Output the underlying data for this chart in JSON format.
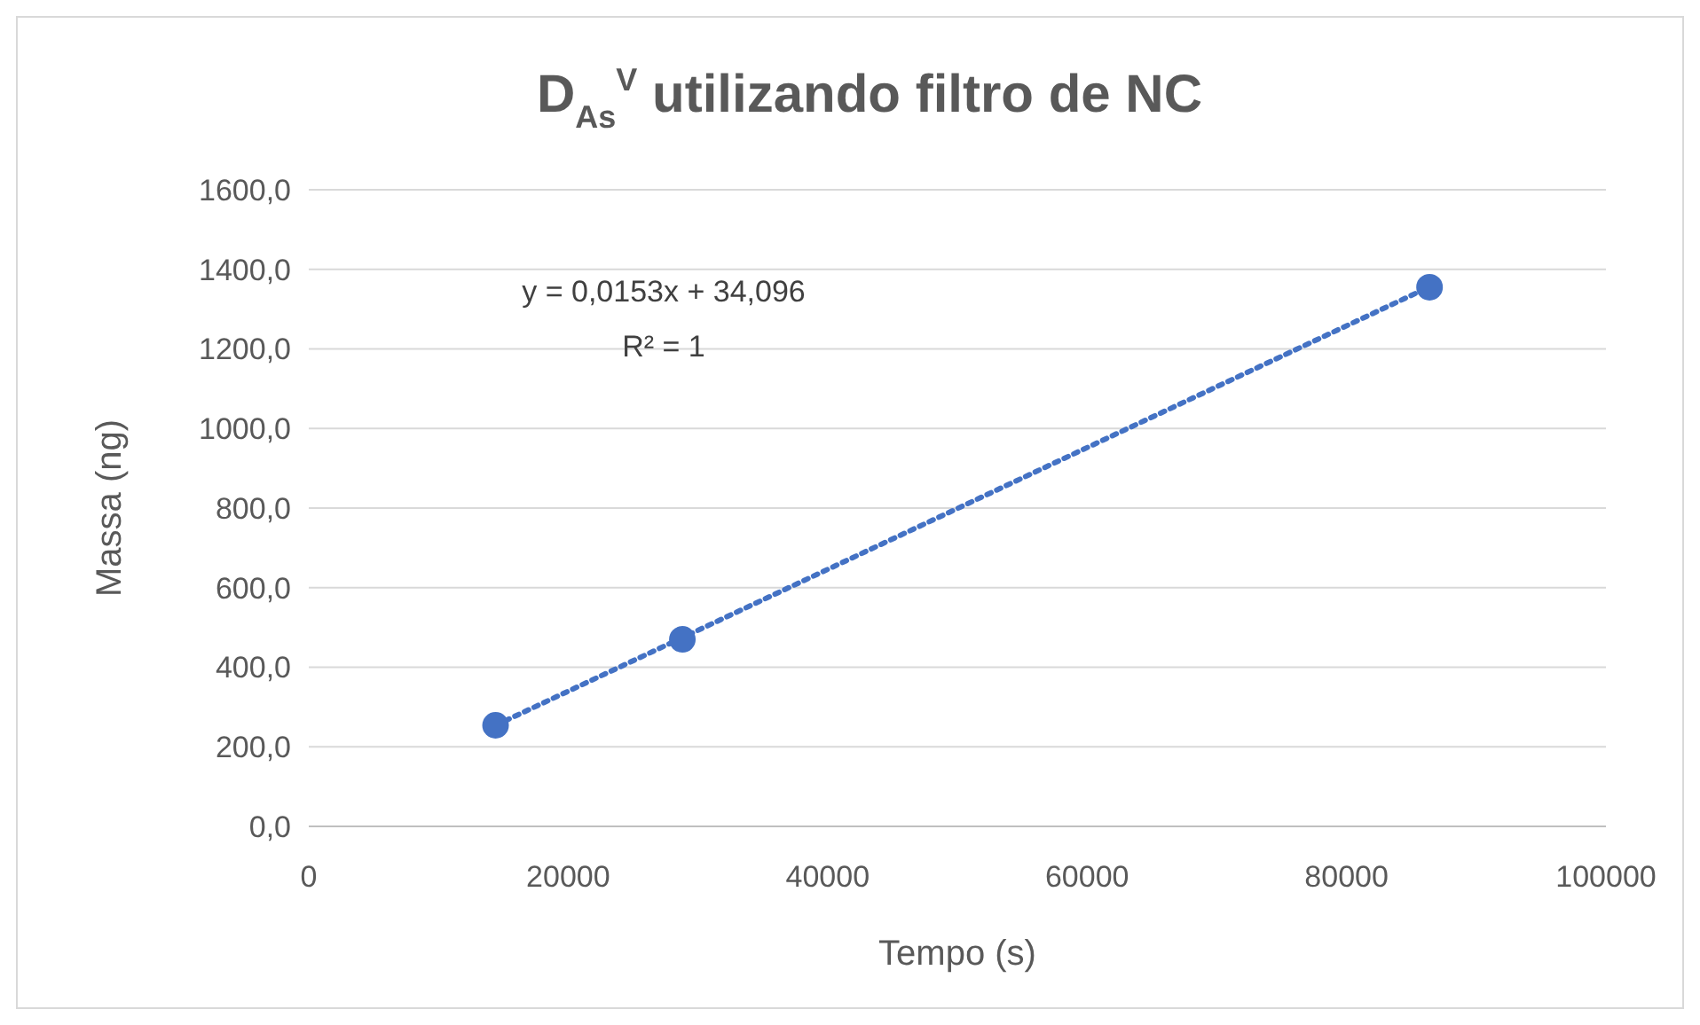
{
  "chart_data": {
    "type": "scatter",
    "title": "D$_{As}$$^{V}$ utilizando filtro de NC",
    "xlabel": "Tempo (s)",
    "ylabel": "Massa (ng)",
    "x": [
      14400,
      28800,
      86400
    ],
    "series": [
      {
        "color": "#4472c4",
        "values": [
          254,
          470,
          1355
        ],
        "marker": "circle"
      },
      {
        "type": "line",
        "color": "#4472c4",
        "x": [
          14400,
          86400
        ],
        "values": [
          254,
          1356
        ],
        "line_style": "dotted",
        "marker": "none"
      }
    ],
    "xlim": [
      0,
      100000
    ],
    "xticks": [
      0,
      20000,
      40000,
      60000,
      80000,
      100000
    ],
    "ylim": [
      0,
      1600
    ],
    "yticks": [
      {
        "value": 0,
        "label": "0,0"
      },
      {
        "value": 200,
        "label": "200,0"
      },
      {
        "value": 400,
        "label": "400,0"
      },
      {
        "value": 600,
        "label": "600,0"
      },
      {
        "value": 800,
        "label": "800,0"
      },
      {
        "value": 1000,
        "label": "1000,0"
      },
      {
        "value": 1200,
        "label": "1200,0"
      },
      {
        "value": 1400,
        "label": "1400,0"
      },
      {
        "value": 1600,
        "label": "1600,0"
      }
    ],
    "grid": "y",
    "annotations": [
      "y = 0,0153x + 34,096",
      "R² = 1"
    ]
  }
}
